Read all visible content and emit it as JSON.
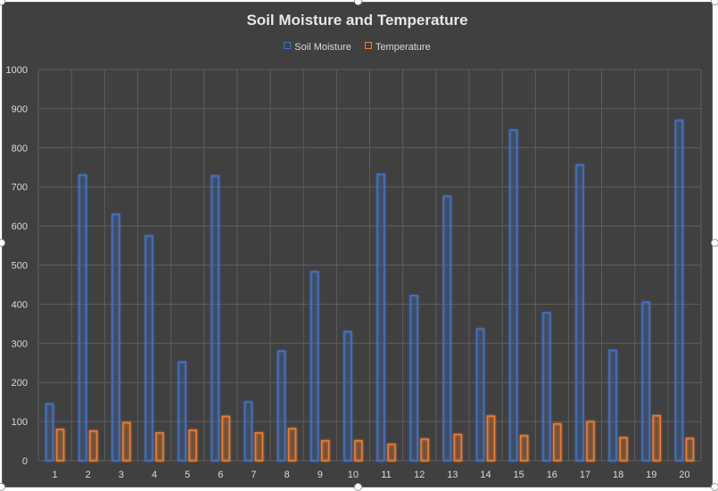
{
  "chart_data": {
    "type": "bar",
    "title": "Soil Moisture and Temperature",
    "xlabel": "",
    "ylabel": "",
    "ylim": [
      0,
      1000
    ],
    "yticks": [
      0,
      100,
      200,
      300,
      400,
      500,
      600,
      700,
      800,
      900,
      1000
    ],
    "grid": true,
    "legend_position": "top",
    "categories": [
      "1",
      "2",
      "3",
      "4",
      "5",
      "6",
      "7",
      "8",
      "9",
      "10",
      "11",
      "12",
      "13",
      "14",
      "15",
      "16",
      "17",
      "18",
      "19",
      "20"
    ],
    "series": [
      {
        "name": "Soil Moisture",
        "color": "#4472c4",
        "values": [
          145,
          730,
          630,
          575,
          252,
          728,
          150,
          280,
          483,
          330,
          732,
          422,
          676,
          337,
          845,
          378,
          756,
          282,
          405,
          870
        ]
      },
      {
        "name": "Temperature",
        "color": "#ed7d31",
        "values": [
          80,
          76,
          97,
          71,
          78,
          113,
          71,
          82,
          51,
          51,
          42,
          55,
          67,
          114,
          64,
          94,
          100,
          59,
          115,
          57
        ]
      }
    ]
  }
}
